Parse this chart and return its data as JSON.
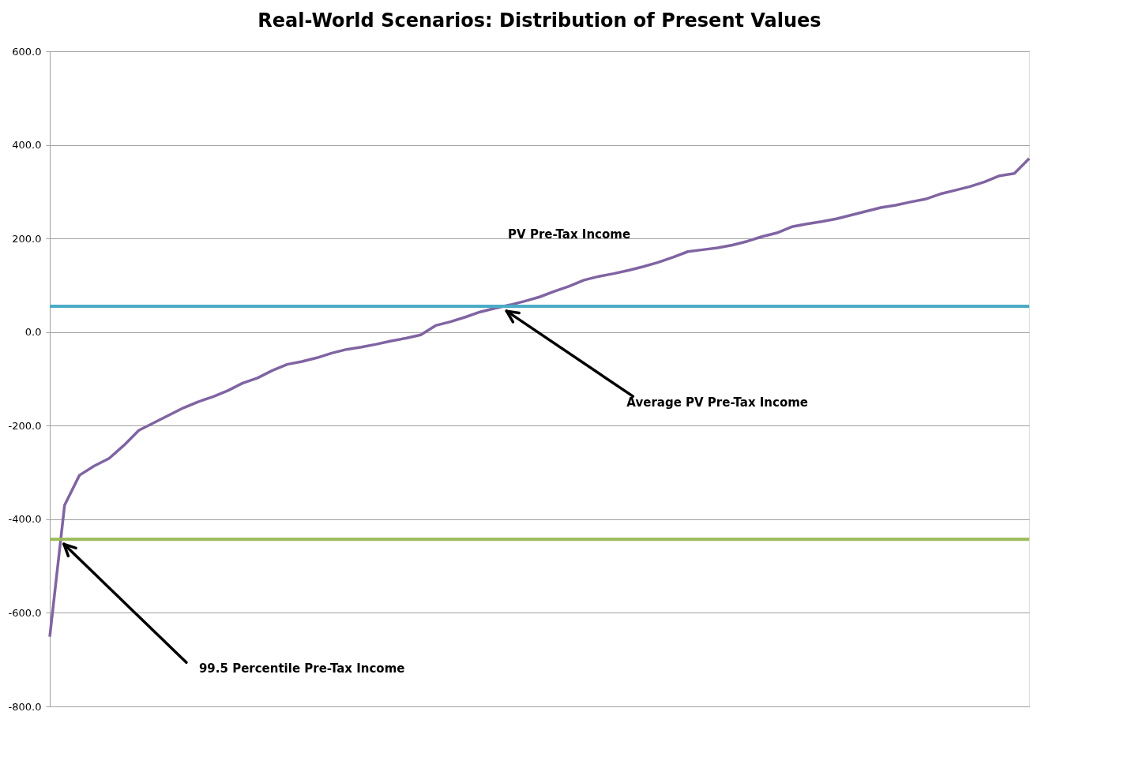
{
  "chart_data": {
    "type": "line",
    "title": "Real-World Scenarios: Distribution of Present Values",
    "categories": [
      null,
      null,
      null,
      null,
      null,
      null,
      null,
      null,
      null,
      null,
      null,
      null,
      null,
      null,
      null,
      null,
      null,
      null,
      null,
      null,
      null,
      null,
      null,
      null,
      null,
      null,
      null,
      null,
      null,
      null,
      null,
      null,
      null,
      null,
      null,
      null,
      null,
      null,
      null,
      null,
      null,
      null,
      null,
      null,
      null,
      null,
      null,
      null,
      null,
      null,
      null,
      null,
      null,
      null,
      null,
      null,
      null,
      null,
      null,
      null,
      null,
      null,
      null,
      null,
      null,
      null,
      null
    ],
    "series": [
      {
        "name": "PV Pre-Tax Income",
        "color": "#8064a2",
        "values": [
          -651,
          -370,
          -306,
          -286,
          -270,
          -242,
          -210,
          -194,
          -178,
          -162,
          -149,
          -138,
          -125,
          -109,
          -98,
          -82,
          -69,
          -63,
          -55,
          -45,
          -37,
          -32,
          -26,
          -19,
          -13,
          -6,
          14,
          22,
          32,
          43,
          51,
          58,
          66,
          75,
          87,
          98,
          111,
          119,
          125,
          132,
          140,
          149,
          160,
          172,
          176,
          180,
          186,
          194,
          204,
          212,
          225,
          231,
          236,
          242,
          250,
          258,
          266,
          271,
          278,
          284,
          295,
          303,
          311,
          321,
          334,
          339,
          371
        ]
      }
    ],
    "ylim": [
      -800,
      600
    ],
    "yticks": [
      {
        "value": -800,
        "label": "-800.0"
      },
      {
        "value": -600,
        "label": "-600.0"
      },
      {
        "value": -400,
        "label": "-400.0"
      },
      {
        "value": -200,
        "label": "-200.0"
      },
      {
        "value": 0,
        "label": "0.0"
      },
      {
        "value": 200,
        "label": "200.0"
      },
      {
        "value": 400,
        "label": "400.0"
      },
      {
        "value": 600,
        "label": "600.0"
      }
    ],
    "ref_lines": [
      {
        "axis": "y",
        "value": 55,
        "label": "Average PV Pre-Tax Income",
        "color": "#4bacc6"
      },
      {
        "axis": "y",
        "value": -443,
        "label": "99.5 Percentile Pre-Tax Income",
        "color": "#9bbb59"
      }
    ],
    "grid": "y",
    "tick_labels": "y",
    "marker": "none",
    "line_style": "solid"
  }
}
